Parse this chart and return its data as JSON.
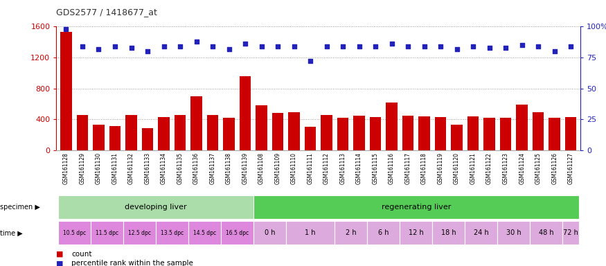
{
  "title": "GDS2577 / 1418677_at",
  "samples": [
    "GSM161128",
    "GSM161129",
    "GSM161130",
    "GSM161131",
    "GSM161132",
    "GSM161133",
    "GSM161134",
    "GSM161135",
    "GSM161136",
    "GSM161137",
    "GSM161138",
    "GSM161139",
    "GSM161108",
    "GSM161109",
    "GSM161110",
    "GSM161111",
    "GSM161112",
    "GSM161113",
    "GSM161114",
    "GSM161115",
    "GSM161116",
    "GSM161117",
    "GSM161118",
    "GSM161119",
    "GSM161120",
    "GSM161121",
    "GSM161122",
    "GSM161123",
    "GSM161124",
    "GSM161125",
    "GSM161126",
    "GSM161127"
  ],
  "counts": [
    1530,
    460,
    330,
    310,
    460,
    290,
    430,
    460,
    700,
    460,
    420,
    960,
    580,
    480,
    490,
    300,
    460,
    420,
    450,
    430,
    620,
    450,
    440,
    430,
    330,
    440,
    420,
    420,
    590,
    490,
    420,
    430
  ],
  "percentile_ranks": [
    98,
    84,
    82,
    84,
    83,
    80,
    84,
    84,
    88,
    84,
    82,
    86,
    84,
    84,
    84,
    72,
    84,
    84,
    84,
    84,
    86,
    84,
    84,
    84,
    82,
    84,
    83,
    83,
    85,
    84,
    80,
    84
  ],
  "bar_color": "#cc0000",
  "dot_color": "#2222bb",
  "ylim_left": [
    0,
    1600
  ],
  "ylim_right": [
    0,
    100
  ],
  "yticks_left": [
    0,
    400,
    800,
    1200,
    1600
  ],
  "yticks_right": [
    0,
    25,
    50,
    75,
    100
  ],
  "grid_lines": [
    400,
    800,
    1200,
    1600
  ],
  "specimen_groups": [
    {
      "label": "developing liver",
      "start": 0,
      "end": 12,
      "color": "#aaddaa"
    },
    {
      "label": "regenerating liver",
      "start": 12,
      "end": 32,
      "color": "#55cc55"
    }
  ],
  "time_labels": [
    {
      "label": "10.5 dpc",
      "start": 0,
      "end": 2,
      "is_dpc": true
    },
    {
      "label": "11.5 dpc",
      "start": 2,
      "end": 4,
      "is_dpc": true
    },
    {
      "label": "12.5 dpc",
      "start": 4,
      "end": 6,
      "is_dpc": true
    },
    {
      "label": "13.5 dpc",
      "start": 6,
      "end": 8,
      "is_dpc": true
    },
    {
      "label": "14.5 dpc",
      "start": 8,
      "end": 10,
      "is_dpc": true
    },
    {
      "label": "16.5 dpc",
      "start": 10,
      "end": 12,
      "is_dpc": true
    },
    {
      "label": "0 h",
      "start": 12,
      "end": 14,
      "is_dpc": false
    },
    {
      "label": "1 h",
      "start": 14,
      "end": 17,
      "is_dpc": false
    },
    {
      "label": "2 h",
      "start": 17,
      "end": 19,
      "is_dpc": false
    },
    {
      "label": "6 h",
      "start": 19,
      "end": 21,
      "is_dpc": false
    },
    {
      "label": "12 h",
      "start": 21,
      "end": 23,
      "is_dpc": false
    },
    {
      "label": "18 h",
      "start": 23,
      "end": 25,
      "is_dpc": false
    },
    {
      "label": "24 h",
      "start": 25,
      "end": 27,
      "is_dpc": false
    },
    {
      "label": "30 h",
      "start": 27,
      "end": 29,
      "is_dpc": false
    },
    {
      "label": "48 h",
      "start": 29,
      "end": 31,
      "is_dpc": false
    },
    {
      "label": "72 h",
      "start": 31,
      "end": 32,
      "is_dpc": false
    }
  ],
  "color_dpc": "#dd88dd",
  "color_h": "#ddaadd",
  "bg_color": "#ffffff",
  "fig_width": 8.75,
  "fig_height": 3.84,
  "dpi": 100
}
